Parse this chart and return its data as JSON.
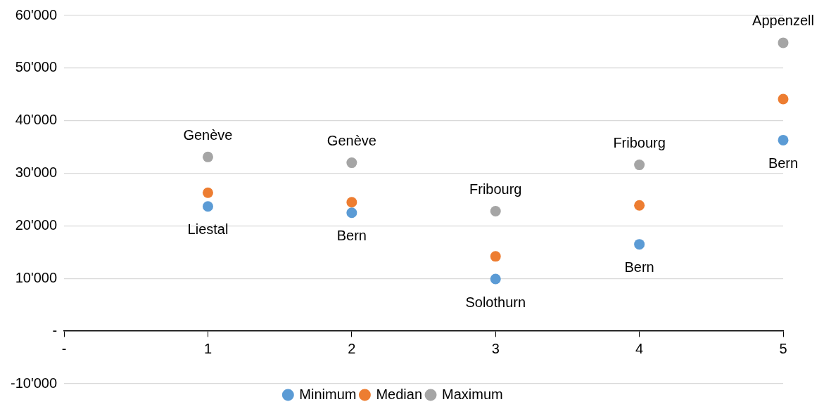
{
  "chart_data": {
    "type": "scatter",
    "x": [
      1,
      2,
      3,
      4,
      5
    ],
    "series": [
      {
        "name": "Minimum",
        "color": "#5b9bd5",
        "values": [
          23700,
          22500,
          9900,
          16500,
          36300
        ]
      },
      {
        "name": "Median",
        "color": "#ed7d31",
        "values": [
          26300,
          24500,
          14200,
          23900,
          44100
        ]
      },
      {
        "name": "Maximum",
        "color": "#a5a5a5",
        "values": [
          33100,
          32000,
          22800,
          31600,
          54800
        ]
      }
    ],
    "xlim": [
      0,
      5
    ],
    "xticks": [
      {
        "value": 0,
        "label": "-"
      },
      1,
      2,
      3,
      4,
      5
    ],
    "ylim": [
      -10000,
      60000
    ],
    "yticks": [
      {
        "value": -10000,
        "label": "-10'000"
      },
      {
        "value": 0,
        "label": "-"
      },
      {
        "value": 10000,
        "label": "10'000"
      },
      {
        "value": 20000,
        "label": "20'000"
      },
      {
        "value": 30000,
        "label": "30'000"
      },
      {
        "value": 40000,
        "label": "40'000"
      },
      {
        "value": 50000,
        "label": "50'000"
      },
      {
        "value": 60000,
        "label": "60'000"
      }
    ],
    "grid": "y",
    "legend": "bottom",
    "marker": "circle",
    "annotations": [
      {
        "text": "Genève",
        "x": 1,
        "y": 33100
      },
      {
        "text": "Liestal",
        "x": 1,
        "y": 23700
      },
      {
        "text": "Genève",
        "x": 2,
        "y": 32000
      },
      {
        "text": "Bern",
        "x": 2,
        "y": 22500
      },
      {
        "text": "Fribourg",
        "x": 3,
        "y": 22800
      },
      {
        "text": "Solothurn",
        "x": 3,
        "y": 9900
      },
      {
        "text": "Fribourg",
        "x": 4,
        "y": 31600
      },
      {
        "text": "Bern",
        "x": 4,
        "y": 16500
      },
      {
        "text": "Appenzell",
        "x": 5,
        "y": 54800
      },
      {
        "text": "Bern",
        "x": 5,
        "y": 36300
      }
    ]
  }
}
